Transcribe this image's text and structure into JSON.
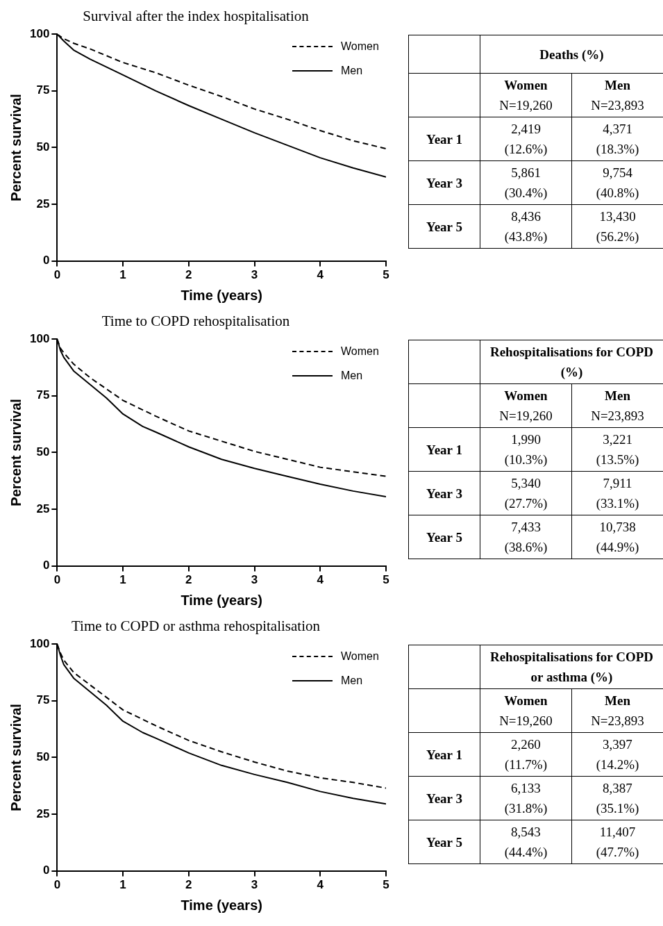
{
  "chart_data": [
    {
      "type": "line",
      "title": "Survival after the index hospitalisation",
      "xlabel": "Time (years)",
      "ylabel": "Percent survival",
      "xlim": [
        0,
        5
      ],
      "xticks": [
        0,
        1,
        2,
        3,
        4,
        5
      ],
      "ylim": [
        0,
        100
      ],
      "yticks": [
        0,
        25,
        50,
        75,
        100
      ],
      "grid": false,
      "legend": "top right",
      "marker": "none",
      "series": [
        {
          "name": "Women",
          "color": "#000000",
          "line_style": "dashed",
          "x": [
            0,
            0.1,
            0.25,
            0.5,
            1,
            1.5,
            2,
            2.5,
            3,
            3.5,
            4,
            4.5,
            5
          ],
          "values": [
            100,
            98,
            96,
            93.5,
            87.5,
            83,
            77.5,
            72.5,
            67,
            62.5,
            57.5,
            53,
            49.5
          ]
        },
        {
          "name": "Men",
          "color": "#000000",
          "line_style": "solid",
          "x": [
            0,
            0.1,
            0.25,
            0.5,
            1,
            1.5,
            2,
            2.5,
            3,
            3.5,
            4,
            4.5,
            5
          ],
          "values": [
            100,
            97,
            93,
            89,
            82,
            75,
            68.5,
            62.5,
            56.5,
            51,
            45.5,
            41,
            37
          ]
        }
      ],
      "annotations": [
        "Deaths (%)",
        "Women",
        "N=19,260",
        "Men",
        "N=23,893",
        "Year 1",
        "2,419",
        "(12.6%)",
        "4,371",
        "(18.3%)",
        "Year 3",
        "5,861",
        "(30.4%)",
        "9,754",
        "(40.8%)",
        "Year 5",
        "8,436",
        "(43.8%)",
        "13,430",
        "(56.2%)"
      ]
    },
    {
      "type": "line",
      "title": "Time to COPD rehospitalisation",
      "xlabel": "Time (years)",
      "ylabel": "Percent survival",
      "xlim": [
        0,
        5
      ],
      "xticks": [
        0,
        1,
        2,
        3,
        4,
        5
      ],
      "ylim": [
        0,
        100
      ],
      "yticks": [
        0,
        25,
        50,
        75,
        100
      ],
      "grid": false,
      "legend": "top right",
      "marker": "none",
      "series": [
        {
          "name": "Women",
          "color": "#000000",
          "line_style": "dashed",
          "x": [
            0,
            0.05,
            0.1,
            0.25,
            0.5,
            0.75,
            1,
            1.5,
            2,
            2.5,
            3,
            3.5,
            4,
            4.5,
            5
          ],
          "values": [
            100,
            96,
            94,
            89,
            83,
            78,
            73,
            66,
            59.5,
            55,
            50.5,
            47,
            43.5,
            41.5,
            39.5
          ]
        },
        {
          "name": "Men",
          "color": "#000000",
          "line_style": "solid",
          "x": [
            0,
            0.05,
            0.1,
            0.25,
            0.5,
            0.75,
            1,
            1.3,
            1.5,
            2,
            2.5,
            3,
            3.5,
            4,
            4.5,
            5
          ],
          "values": [
            100,
            95,
            92,
            86,
            80,
            74,
            67,
            61.5,
            59,
            52.5,
            47,
            43,
            39.5,
            36,
            33,
            30.5
          ]
        }
      ],
      "annotations": [
        "Rehospitalisations for COPD (%)",
        "Women",
        "N=19,260",
        "Men",
        "N=23,893",
        "Year 1",
        "1,990",
        "(10.3%)",
        "3,221",
        "(13.5%)",
        "Year 3",
        "5,340",
        "(27.7%)",
        "7,911",
        "(33.1%)",
        "Year 5",
        "7,433",
        "(38.6%)",
        "10,738",
        "(44.9%)"
      ]
    },
    {
      "type": "line",
      "title": "Time to COPD or asthma rehospitalisation",
      "xlabel": "Time (years)",
      "ylabel": "Percent survival",
      "xlim": [
        0,
        5
      ],
      "xticks": [
        0,
        1,
        2,
        3,
        4,
        5
      ],
      "ylim": [
        0,
        100
      ],
      "yticks": [
        0,
        25,
        50,
        75,
        100
      ],
      "grid": false,
      "legend": "top right",
      "marker": "none",
      "series": [
        {
          "name": "Women",
          "color": "#000000",
          "line_style": "dashed",
          "x": [
            0,
            0.05,
            0.1,
            0.25,
            0.5,
            0.75,
            1,
            1.5,
            2,
            2.5,
            3,
            3.5,
            4,
            4.5,
            5
          ],
          "values": [
            100,
            96,
            93,
            87.5,
            82,
            76.5,
            71,
            64,
            57.5,
            52.5,
            48,
            44,
            41,
            39,
            36.5
          ]
        },
        {
          "name": "Men",
          "color": "#000000",
          "line_style": "solid",
          "x": [
            0,
            0.05,
            0.1,
            0.25,
            0.5,
            0.75,
            1,
            1.3,
            1.5,
            2,
            2.5,
            3,
            3.5,
            4,
            4.5,
            5
          ],
          "values": [
            100,
            95,
            91,
            85,
            79,
            73,
            66,
            61,
            58.5,
            52,
            46.5,
            42.5,
            39,
            35,
            32,
            29.5
          ]
        }
      ],
      "annotations": [
        "Rehospitalisations for COPD or asthma (%)",
        "Women",
        "N=19,260",
        "Men",
        "N=23,893",
        "Year 1",
        "2,260",
        "(11.7%)",
        "3,397",
        "(14.2%)",
        "Year 3",
        "6,133",
        "(31.8%)",
        "8,387",
        "(35.1%)",
        "Year 5",
        "8,543",
        "(44.4%)",
        "11,407",
        "(47.7%)"
      ]
    }
  ]
}
